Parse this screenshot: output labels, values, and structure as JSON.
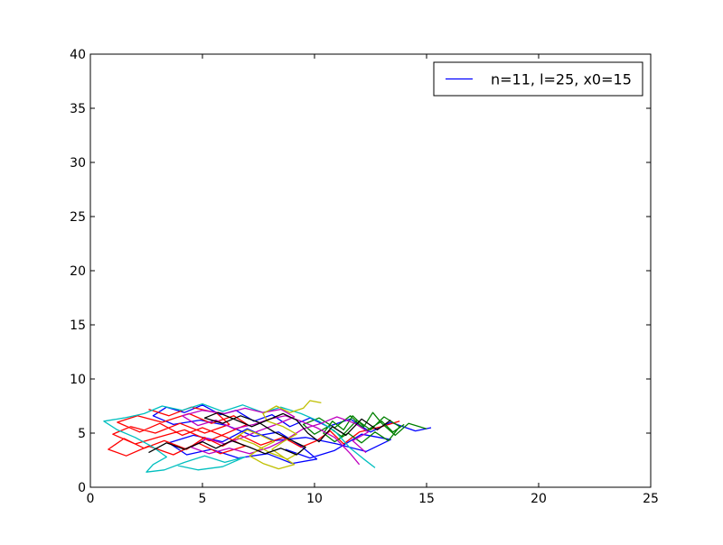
{
  "chart_data": {
    "type": "line",
    "title": "",
    "xlabel": "",
    "ylabel": "",
    "xlim": [
      0,
      25
    ],
    "ylim": [
      0,
      40
    ],
    "xticks": [
      0,
      5,
      10,
      15,
      20,
      25
    ],
    "yticks": [
      0,
      5,
      10,
      15,
      20,
      25,
      30,
      35,
      40
    ],
    "grid": false,
    "legend_position": "top-right",
    "legend": [
      {
        "label": "n=11, l=25, x0=15",
        "color": "#0000ff"
      }
    ],
    "series": [
      {
        "color": "#0000ff",
        "points": [
          [
            15.2,
            5.5
          ],
          [
            14.5,
            5.2
          ],
          [
            13.4,
            6.0
          ],
          [
            12.5,
            5.1
          ],
          [
            11.6,
            6.3
          ],
          [
            10.6,
            5.6
          ],
          [
            9.8,
            6.4
          ],
          [
            8.9,
            5.6
          ],
          [
            8.1,
            6.7
          ],
          [
            7.3,
            6.1
          ],
          [
            6.5,
            7.1
          ],
          [
            5.8,
            6.7
          ],
          [
            5.0,
            7.6
          ],
          [
            4.2,
            6.9
          ],
          [
            3.4,
            7.4
          ],
          [
            2.8,
            6.6
          ],
          [
            3.7,
            5.8
          ],
          [
            4.9,
            6.2
          ],
          [
            6.1,
            5.7
          ],
          [
            7.3,
            4.7
          ],
          [
            8.4,
            5.1
          ],
          [
            9.4,
            3.8
          ],
          [
            10.1,
            2.6
          ],
          [
            9.0,
            2.2
          ],
          [
            7.9,
            3.1
          ],
          [
            6.6,
            2.7
          ],
          [
            5.4,
            3.5
          ],
          [
            4.3,
            3.0
          ],
          [
            3.5,
            4.1
          ],
          [
            4.6,
            4.8
          ],
          [
            5.9,
            4.2
          ],
          [
            7.0,
            5.4
          ],
          [
            8.2,
            4.3
          ],
          [
            9.6,
            4.6
          ],
          [
            11.0,
            4.0
          ],
          [
            12.3,
            3.3
          ],
          [
            13.4,
            4.4
          ],
          [
            12.1,
            4.9
          ],
          [
            10.9,
            3.4
          ],
          [
            9.8,
            2.7
          ],
          [
            8.7,
            3.5
          ]
        ]
      },
      {
        "color": "#ff0000",
        "points": [
          [
            13.8,
            6.1
          ],
          [
            13.0,
            5.6
          ],
          [
            12.0,
            5.1
          ],
          [
            11.3,
            4.0
          ],
          [
            10.7,
            5.2
          ],
          [
            10.1,
            4.3
          ],
          [
            9.4,
            3.7
          ],
          [
            8.6,
            4.6
          ],
          [
            7.6,
            3.9
          ],
          [
            6.7,
            4.8
          ],
          [
            5.9,
            3.8
          ],
          [
            5.1,
            4.6
          ],
          [
            4.3,
            3.5
          ],
          [
            3.3,
            4.3
          ],
          [
            2.4,
            3.6
          ],
          [
            1.5,
            4.5
          ],
          [
            0.8,
            3.5
          ],
          [
            1.6,
            2.9
          ],
          [
            2.6,
            3.8
          ],
          [
            3.7,
            3.0
          ],
          [
            4.8,
            4.1
          ],
          [
            5.8,
            3.1
          ],
          [
            6.9,
            3.8
          ],
          [
            6.1,
            4.6
          ],
          [
            5.0,
            5.5
          ],
          [
            4.1,
            4.8
          ],
          [
            3.1,
            5.9
          ],
          [
            2.2,
            5.1
          ],
          [
            1.2,
            6.0
          ],
          [
            2.1,
            6.6
          ],
          [
            3.2,
            6.0
          ],
          [
            4.4,
            6.8
          ],
          [
            5.4,
            5.9
          ],
          [
            6.4,
            6.6
          ],
          [
            7.0,
            5.8
          ],
          [
            6.2,
            5.1
          ],
          [
            5.3,
            4.3
          ],
          [
            4.2,
            5.3
          ],
          [
            3.0,
            4.6
          ],
          [
            2.0,
            4.0
          ],
          [
            1.0,
            4.9
          ],
          [
            1.8,
            5.6
          ],
          [
            2.9,
            5.0
          ],
          [
            4.0,
            5.9
          ],
          [
            5.1,
            5.0
          ],
          [
            6.2,
            5.8
          ],
          [
            5.6,
            6.9
          ],
          [
            4.5,
            7.4
          ],
          [
            3.5,
            6.6
          ],
          [
            2.6,
            7.2
          ]
        ]
      },
      {
        "color": "#008000",
        "points": [
          [
            15.0,
            5.4
          ],
          [
            14.2,
            5.9
          ],
          [
            13.6,
            4.8
          ],
          [
            13.0,
            5.9
          ],
          [
            12.6,
            6.9
          ],
          [
            12.2,
            5.6
          ],
          [
            11.7,
            6.6
          ],
          [
            11.3,
            5.3
          ],
          [
            10.8,
            6.1
          ],
          [
            10.4,
            5.0
          ],
          [
            10.9,
            4.2
          ],
          [
            11.5,
            5.0
          ],
          [
            12.1,
            4.1
          ],
          [
            12.7,
            5.1
          ],
          [
            13.3,
            4.3
          ],
          [
            13.8,
            5.6
          ],
          [
            13.1,
            6.5
          ],
          [
            12.5,
            5.3
          ],
          [
            11.9,
            6.2
          ],
          [
            11.2,
            4.7
          ],
          [
            10.6,
            5.6
          ],
          [
            10.0,
            4.9
          ],
          [
            9.5,
            5.8
          ],
          [
            10.2,
            6.4
          ],
          [
            10.9,
            5.5
          ],
          [
            11.6,
            6.6
          ],
          [
            12.3,
            5.2
          ],
          [
            13.0,
            6.1
          ],
          [
            13.5,
            5.1
          ],
          [
            14.0,
            5.8
          ]
        ]
      },
      {
        "color": "#00bfbf",
        "points": [
          [
            12.7,
            1.8
          ],
          [
            12.2,
            2.6
          ],
          [
            11.6,
            3.6
          ],
          [
            10.9,
            5.2
          ],
          [
            10.2,
            6.1
          ],
          [
            9.4,
            6.8
          ],
          [
            8.5,
            7.4
          ],
          [
            7.7,
            6.9
          ],
          [
            6.8,
            7.6
          ],
          [
            5.9,
            7.0
          ],
          [
            5.0,
            7.7
          ],
          [
            4.1,
            7.1
          ],
          [
            3.2,
            7.5
          ],
          [
            2.4,
            6.8
          ],
          [
            1.5,
            6.4
          ],
          [
            0.6,
            6.1
          ],
          [
            1.2,
            5.3
          ],
          [
            2.0,
            4.6
          ],
          [
            2.8,
            3.7
          ],
          [
            3.4,
            2.8
          ],
          [
            2.8,
            2.1
          ],
          [
            2.5,
            1.4
          ],
          [
            3.3,
            1.6
          ],
          [
            4.2,
            2.3
          ],
          [
            5.1,
            2.9
          ],
          [
            6.0,
            2.3
          ],
          [
            6.9,
            2.8
          ],
          [
            5.9,
            1.9
          ],
          [
            4.8,
            1.6
          ],
          [
            3.9,
            2.0
          ]
        ]
      },
      {
        "color": "#bf00bf",
        "points": [
          [
            12.0,
            2.1
          ],
          [
            11.6,
            3.1
          ],
          [
            10.9,
            4.6
          ],
          [
            10.1,
            5.5
          ],
          [
            9.4,
            6.1
          ],
          [
            8.7,
            6.6
          ],
          [
            8.0,
            6.3
          ],
          [
            7.3,
            5.8
          ],
          [
            6.4,
            5.4
          ],
          [
            5.6,
            6.2
          ],
          [
            4.8,
            5.7
          ],
          [
            4.1,
            6.6
          ],
          [
            5.0,
            7.1
          ],
          [
            6.0,
            6.8
          ],
          [
            6.9,
            7.3
          ],
          [
            7.7,
            6.9
          ],
          [
            8.5,
            7.2
          ],
          [
            9.1,
            6.5
          ],
          [
            8.3,
            5.8
          ],
          [
            7.5,
            5.2
          ],
          [
            6.8,
            4.6
          ],
          [
            6.0,
            4.0
          ],
          [
            5.2,
            4.5
          ],
          [
            4.5,
            3.7
          ],
          [
            5.3,
            3.1
          ],
          [
            6.2,
            3.6
          ],
          [
            7.1,
            3.1
          ],
          [
            8.0,
            3.7
          ],
          [
            8.8,
            4.5
          ],
          [
            9.5,
            5.4
          ],
          [
            10.3,
            5.9
          ],
          [
            11.0,
            6.5
          ],
          [
            11.8,
            5.9
          ],
          [
            12.4,
            5.1
          ],
          [
            11.7,
            4.3
          ],
          [
            12.3,
            3.2
          ]
        ]
      },
      {
        "color": "#bfbf00",
        "points": [
          [
            10.3,
            7.8
          ],
          [
            9.8,
            8.0
          ],
          [
            9.5,
            7.3
          ],
          [
            8.9,
            6.9
          ],
          [
            8.3,
            7.5
          ],
          [
            7.7,
            6.8
          ],
          [
            7.9,
            6.1
          ],
          [
            8.6,
            5.6
          ],
          [
            9.2,
            4.9
          ],
          [
            8.6,
            4.2
          ],
          [
            8.1,
            3.5
          ],
          [
            8.6,
            2.8
          ],
          [
            9.1,
            2.1
          ],
          [
            8.4,
            1.7
          ],
          [
            7.7,
            2.2
          ],
          [
            7.1,
            2.9
          ],
          [
            7.6,
            3.6
          ],
          [
            8.2,
            4.2
          ],
          [
            7.6,
            4.8
          ],
          [
            7.0,
            5.3
          ],
          [
            6.5,
            4.6
          ],
          [
            7.3,
            4.0
          ],
          [
            8.0,
            3.2
          ],
          [
            8.8,
            2.6
          ],
          [
            9.4,
            3.3
          ]
        ]
      },
      {
        "color": "#000000",
        "points": [
          [
            13.4,
            6.2
          ],
          [
            12.8,
            5.3
          ],
          [
            12.1,
            6.3
          ],
          [
            11.4,
            4.8
          ],
          [
            10.8,
            5.6
          ],
          [
            10.2,
            4.2
          ],
          [
            9.7,
            5.0
          ],
          [
            9.2,
            6.2
          ],
          [
            8.6,
            6.8
          ],
          [
            7.9,
            6.2
          ],
          [
            7.2,
            5.6
          ],
          [
            6.4,
            6.3
          ],
          [
            5.7,
            6.9
          ],
          [
            5.1,
            6.4
          ],
          [
            5.9,
            5.9
          ],
          [
            6.7,
            6.6
          ],
          [
            7.5,
            6.0
          ],
          [
            8.2,
            5.1
          ],
          [
            8.9,
            4.4
          ],
          [
            9.6,
            3.7
          ],
          [
            9.2,
            3.0
          ],
          [
            8.5,
            3.6
          ],
          [
            7.8,
            3.1
          ],
          [
            7.1,
            3.7
          ],
          [
            6.3,
            4.3
          ],
          [
            5.6,
            3.6
          ],
          [
            5.0,
            4.2
          ],
          [
            4.2,
            3.5
          ],
          [
            3.4,
            4.1
          ],
          [
            2.6,
            3.2
          ]
        ]
      }
    ]
  }
}
